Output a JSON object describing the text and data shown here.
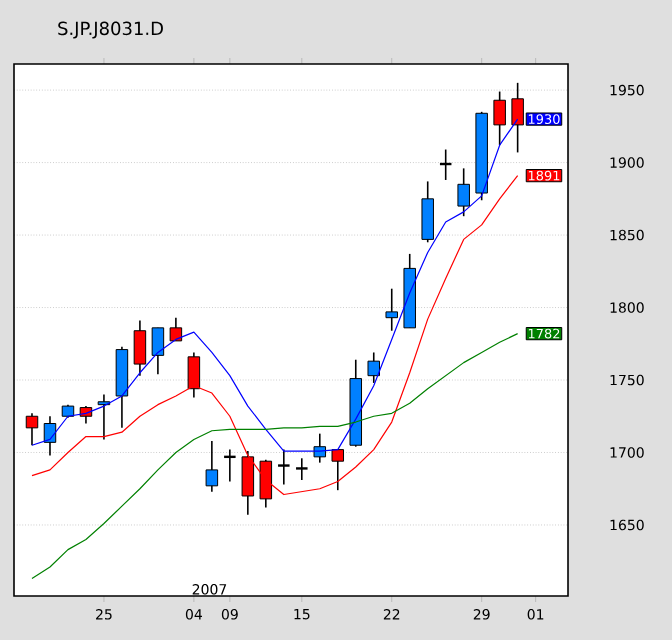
{
  "chart_data": {
    "type": "candlestick",
    "title": "S.JP.J8031.D",
    "categories": [
      null,
      null,
      null,
      null,
      "25",
      null,
      null,
      null,
      null,
      "04",
      null,
      "09",
      null,
      null,
      null,
      "15",
      null,
      null,
      null,
      null,
      "22",
      null,
      null,
      null,
      null,
      "29",
      null,
      null,
      "01"
    ],
    "ohlc": [
      [
        1725,
        1727,
        1705,
        1717
      ],
      [
        1707,
        1725,
        1698,
        1720
      ],
      [
        1725,
        1733,
        1724,
        1732
      ],
      [
        1731,
        1732,
        1720,
        1725
      ],
      [
        1733,
        1740,
        1709,
        1735
      ],
      [
        1739,
        1773,
        1717,
        1771
      ],
      [
        1784,
        1791,
        1753,
        1761
      ],
      [
        1767,
        1786,
        1754,
        1786
      ],
      [
        1786,
        1793,
        1777,
        1777
      ],
      [
        1766,
        1769,
        1738,
        1744
      ],
      [
        1677,
        1708,
        1673,
        1688
      ],
      [
        1697,
        1702,
        1680,
        1697
      ],
      [
        1697,
        1701,
        1657,
        1670
      ],
      [
        1694,
        1695,
        1662,
        1668
      ],
      [
        1691,
        1702,
        1678,
        1691
      ],
      [
        1689,
        1696,
        1681,
        1689
      ],
      [
        1697,
        1713,
        1693,
        1704
      ],
      [
        1702,
        1702,
        1674,
        1694
      ],
      [
        1705,
        1764,
        1704,
        1751
      ],
      [
        1753,
        1769,
        1748,
        1763
      ],
      [
        1793,
        1813,
        1784,
        1797
      ],
      [
        1786,
        1837,
        1786,
        1827
      ],
      [
        1847,
        1887,
        1845,
        1875
      ],
      [
        1899,
        1909,
        1888,
        1899
      ],
      [
        1870,
        1896,
        1863,
        1885
      ],
      [
        1879,
        1935,
        1874,
        1934
      ],
      [
        1943,
        1949,
        1912,
        1926
      ],
      [
        1944,
        1955,
        1907,
        1926
      ],
      null
    ],
    "colors": [
      "#ff0000",
      "#0080ff",
      "#0080ff",
      "#ff0000",
      "#0080ff",
      "#0080ff",
      "#ff0000",
      "#0080ff",
      "#ff0000",
      "#ff0000",
      "#0080ff",
      "#000000",
      "#ff0000",
      "#ff0000",
      "#000000",
      "#000000",
      "#0080ff",
      "#ff0000",
      "#0080ff",
      "#0080ff",
      "#0080ff",
      "#0080ff",
      "#0080ff",
      "#000000",
      "#0080ff",
      "#0080ff",
      "#ff0000",
      "#ff0000",
      null
    ],
    "series": [
      {
        "type": "line",
        "color": "#0000ff",
        "values": [
          1705,
          1709,
          1725,
          1727,
          1732,
          1739,
          1755,
          1769,
          1778,
          1783,
          1769,
          1753,
          1732,
          1716,
          1701,
          1701,
          1701,
          1702,
          1723,
          1746,
          1778,
          1810,
          1838,
          1859,
          1866,
          1877,
          1912,
          1930,
          null
        ],
        "value_labels": [
          null,
          null,
          null,
          null,
          null,
          null,
          null,
          null,
          null,
          null,
          null,
          null,
          null,
          null,
          null,
          null,
          null,
          null,
          null,
          null,
          null,
          null,
          null,
          null,
          null,
          null,
          null,
          "1930",
          null
        ]
      },
      {
        "type": "line",
        "color": "#ff0000",
        "values": [
          1684,
          1688,
          1700,
          1711,
          1711,
          1714,
          1725,
          1733,
          1739,
          1746,
          1741,
          1725,
          1698,
          1681,
          1671,
          1673,
          1675,
          1680,
          1690,
          1702,
          1721,
          1755,
          1792,
          1820,
          1847,
          1857,
          1875,
          1891,
          null
        ],
        "value_labels": [
          null,
          null,
          null,
          null,
          null,
          null,
          null,
          null,
          null,
          null,
          null,
          null,
          null,
          null,
          null,
          null,
          null,
          null,
          null,
          null,
          null,
          null,
          null,
          null,
          null,
          null,
          null,
          "1891",
          null
        ]
      },
      {
        "type": "line",
        "color": "#008000",
        "values": [
          1613,
          1621,
          1633,
          1640,
          1651,
          1663,
          1675,
          1688,
          1700,
          1709,
          1715,
          1716,
          1716,
          1716,
          1717,
          1717,
          1718,
          1718,
          1721,
          1725,
          1727,
          1734,
          1744,
          1753,
          1762,
          1769,
          1776,
          1782,
          null
        ],
        "value_labels": [
          null,
          null,
          null,
          null,
          null,
          null,
          null,
          null,
          null,
          null,
          null,
          null,
          null,
          null,
          null,
          null,
          null,
          null,
          null,
          null,
          null,
          null,
          null,
          null,
          null,
          null,
          null,
          "1782",
          null
        ]
      }
    ],
    "ylim": [
      1601,
      1968
    ],
    "yticks": [
      1650,
      1700,
      1750,
      1800,
      1850,
      1900,
      1950
    ],
    "grid": "y",
    "annotations": [
      "2007"
    ]
  }
}
